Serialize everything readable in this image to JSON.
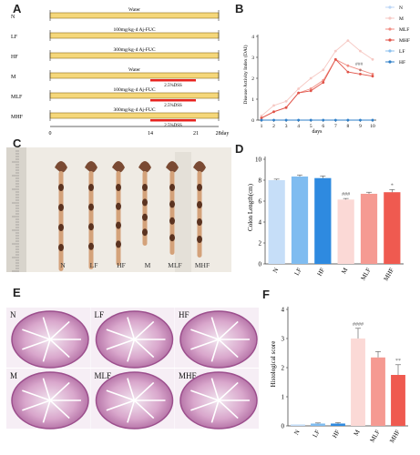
{
  "panels": {
    "a": "A",
    "b": "B",
    "c": "C",
    "d": "D",
    "e": "E",
    "f": "F"
  },
  "panel_a": {
    "rows": [
      {
        "label": "N",
        "text": "Water"
      },
      {
        "label": "LF",
        "text": "100mg/kg·d Aj-FUC"
      },
      {
        "label": "HF",
        "text": "300mg/kg·d Aj-FUC"
      },
      {
        "label": "M",
        "text": "Water"
      },
      {
        "label": "MLF",
        "text": "100mg/kg·d Aj-FUC"
      },
      {
        "label": "MHF",
        "text": "300mg/kg·d Aj-FUC"
      }
    ],
    "dss_label": "2.5%DSS",
    "ticks": [
      "0",
      "14",
      "21",
      "28day"
    ],
    "colors": {
      "bar": "#f5d77a",
      "bar_edge": "#8a6d1e",
      "dss": "#e8231f"
    }
  },
  "panel_b": {
    "chart_data": {
      "type": "line",
      "x": [
        1,
        2,
        3,
        4,
        5,
        6,
        7,
        8,
        9,
        10
      ],
      "xlabel": "days",
      "ylabel": "Disease Activity Index (DAI)",
      "ylim": [
        0,
        4
      ],
      "yticks": [
        "0",
        "1",
        "2",
        "3",
        "4"
      ],
      "series": [
        {
          "name": "N",
          "color": "#bcd6f5",
          "values": [
            0,
            0,
            0,
            0,
            0,
            0,
            0,
            0,
            0,
            0
          ]
        },
        {
          "name": "M",
          "color": "#f6c9c4",
          "values": [
            0.2,
            0.7,
            0.9,
            1.5,
            2.0,
            2.4,
            3.3,
            3.8,
            3.3,
            2.9
          ]
        },
        {
          "name": "MLF",
          "color": "#f08e84",
          "values": [
            0.1,
            0.4,
            0.6,
            1.3,
            1.5,
            1.9,
            2.9,
            2.6,
            2.4,
            2.2
          ]
        },
        {
          "name": "MHF",
          "color": "#e05348",
          "values": [
            0.1,
            0.4,
            0.6,
            1.3,
            1.4,
            1.8,
            2.9,
            2.3,
            2.2,
            2.1
          ]
        },
        {
          "name": "LF",
          "color": "#8cc0ee",
          "values": [
            0,
            0,
            0,
            0,
            0,
            0,
            0,
            0,
            0,
            0
          ]
        },
        {
          "name": "HF",
          "color": "#2f7fc8",
          "values": [
            0,
            0,
            0,
            0,
            0,
            0,
            0,
            0,
            0,
            0
          ]
        }
      ],
      "annotations": [
        "###",
        "*"
      ]
    }
  },
  "panel_c": {
    "labels": [
      "N",
      "LF",
      "HF",
      "M",
      "MLF",
      "MHF"
    ]
  },
  "panel_d": {
    "chart_data": {
      "type": "bar",
      "categories": [
        "N",
        "LF",
        "HF",
        "M",
        "MLF",
        "MHF"
      ],
      "values": [
        8.0,
        8.35,
        8.2,
        6.15,
        6.7,
        6.85
      ],
      "errors": [
        0.1,
        0.15,
        0.2,
        0.1,
        0.15,
        0.25
      ],
      "colors": [
        "#c6def8",
        "#7fbcf0",
        "#2e8ae0",
        "#fbd9d6",
        "#f59a92",
        "#ef5a50"
      ],
      "ylabel": "Colon Length(cm)",
      "ylim": [
        0,
        10
      ],
      "yticks": [
        "0",
        "2",
        "4",
        "6",
        "8",
        "10"
      ],
      "annotations": {
        "M": "###",
        "MHF": "*"
      }
    }
  },
  "panel_e": {
    "labels": [
      "N",
      "LF",
      "HF",
      "M",
      "MLF",
      "MHF"
    ]
  },
  "panel_f": {
    "chart_data": {
      "type": "bar",
      "categories": [
        "N",
        "LF",
        "HF",
        "M",
        "MLF",
        "MHF"
      ],
      "values": [
        0.05,
        0.08,
        0.08,
        3.0,
        2.35,
        1.75
      ],
      "errors": [
        0,
        0.02,
        0.03,
        0.35,
        0.2,
        0.35
      ],
      "colors": [
        "#c6def8",
        "#7fbcf0",
        "#2e8ae0",
        "#fbd9d6",
        "#f59a92",
        "#ef5a50"
      ],
      "ylabel": "Histological score",
      "ylim": [
        0,
        4
      ],
      "yticks": [
        "0",
        "1",
        "2",
        "3",
        "4"
      ],
      "annotations": {
        "M": "####",
        "MHF": "**"
      }
    }
  }
}
